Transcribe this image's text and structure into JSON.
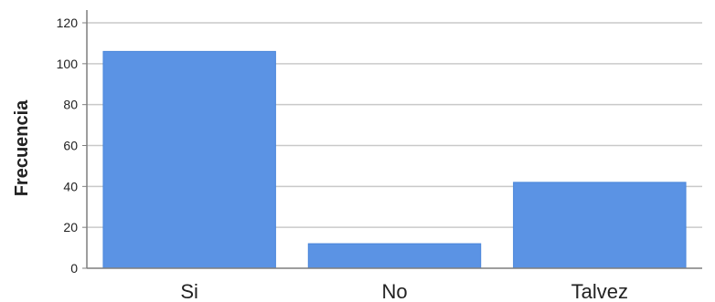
{
  "chart_data": {
    "type": "bar",
    "title": "",
    "xlabel": "",
    "ylabel": "Frecuencia",
    "categories": [
      "Si",
      "No",
      "Talvez"
    ],
    "values": [
      106,
      12,
      42
    ],
    "ylim": [
      0,
      120
    ],
    "yticks": [
      0,
      20,
      40,
      60,
      80,
      100,
      120
    ],
    "grid": true,
    "legend": "none",
    "colors": {
      "bar": "#5B93E4",
      "bar_stroke": "#4A86DA",
      "grid": "#C9C9C9",
      "axis": "#7F7F7F",
      "text": "#222222"
    }
  }
}
